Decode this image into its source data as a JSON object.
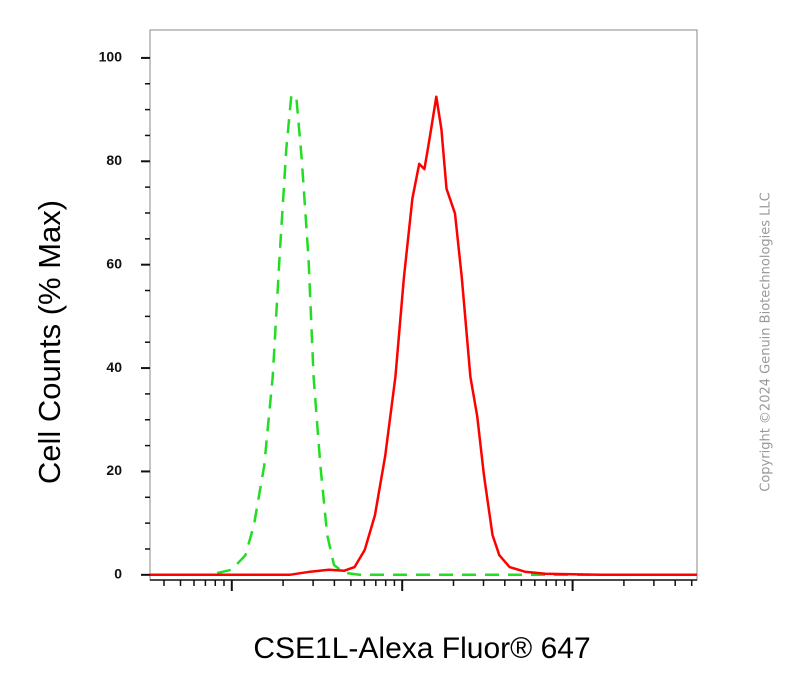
{
  "chart_data": {
    "type": "line",
    "ylabel": "Cell Counts (% Max)",
    "xlabel": "CSE1L-Alexa Fluor® 647",
    "copyright": "Copyright ©2024 Genuin Biotechnologies LLC",
    "xlim": [
      -0.48,
      2.73
    ],
    "xticks": [
      0,
      1,
      2
    ],
    "ylim": [
      -1,
      105.4
    ],
    "yticks": [
      0,
      20,
      40,
      60,
      80,
      100
    ],
    "series": [
      {
        "color": "#ff0000",
        "dash": false,
        "x": [
          -0.48,
          0.34,
          0.46,
          0.57,
          0.66,
          0.72,
          0.78,
          0.84,
          0.9,
          0.96,
          1.01,
          1.06,
          1.1,
          1.13,
          1.16,
          1.2,
          1.23,
          1.26,
          1.31,
          1.35,
          1.4,
          1.44,
          1.48,
          1.53,
          1.57,
          1.63,
          1.72,
          1.84,
          2.16,
          2.73
        ],
        "values": [
          0,
          0,
          0.6,
          1,
          0.8,
          1.5,
          4.8,
          11.5,
          23,
          38.3,
          57.5,
          72.8,
          79.5,
          78.5,
          84.3,
          92.5,
          86.2,
          74.7,
          69.9,
          57.5,
          38.3,
          30.7,
          19.2,
          7.7,
          3.8,
          1.5,
          0.6,
          0.2,
          0,
          0
        ]
      },
      {
        "color": "#22dd22",
        "dash": true,
        "x": [
          -0.22,
          -0.13,
          0,
          0.08,
          0.13,
          0.19,
          0.24,
          0.28,
          0.32,
          0.35,
          0.38,
          0.41,
          0.45,
          0.48,
          0.52,
          0.56,
          0.6,
          0.66,
          0.75,
          2.73
        ],
        "values": [
          0,
          0,
          1,
          3.8,
          9.6,
          21.1,
          38.3,
          61.3,
          82.4,
          92.9,
          92,
          80.5,
          61.3,
          38.3,
          21.1,
          7.7,
          1.9,
          0.4,
          0,
          0
        ]
      }
    ]
  }
}
